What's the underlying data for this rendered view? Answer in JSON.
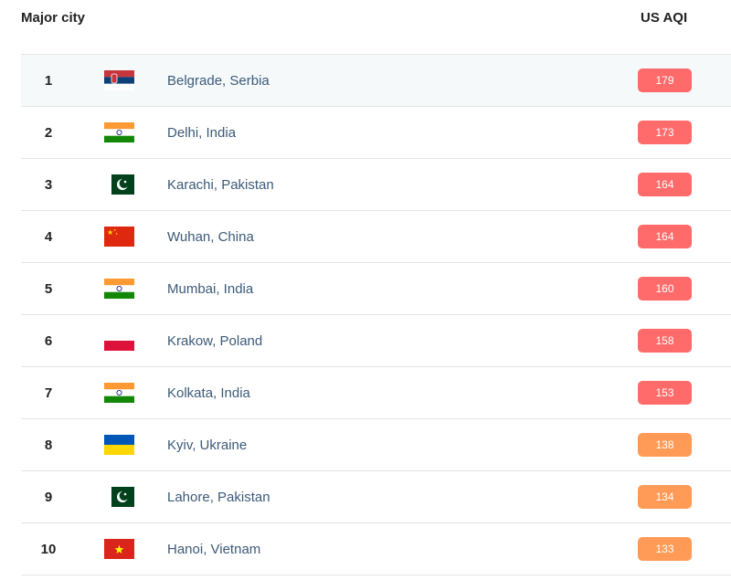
{
  "header": {
    "city": "Major city",
    "aqi": "US AQI"
  },
  "colors": {
    "unhealthy": "#ff6b6b",
    "sensitive": "#ff9b57"
  },
  "rows": [
    {
      "rank": "1",
      "flag": "serbia",
      "city": "Belgrade, Serbia",
      "aqi": "179",
      "level": "unhealthy"
    },
    {
      "rank": "2",
      "flag": "india",
      "city": "Delhi, India",
      "aqi": "173",
      "level": "unhealthy"
    },
    {
      "rank": "3",
      "flag": "pakistan",
      "city": "Karachi, Pakistan",
      "aqi": "164",
      "level": "unhealthy"
    },
    {
      "rank": "4",
      "flag": "china",
      "city": "Wuhan, China",
      "aqi": "164",
      "level": "unhealthy"
    },
    {
      "rank": "5",
      "flag": "india",
      "city": "Mumbai, India",
      "aqi": "160",
      "level": "unhealthy"
    },
    {
      "rank": "6",
      "flag": "poland",
      "city": "Krakow, Poland",
      "aqi": "158",
      "level": "unhealthy"
    },
    {
      "rank": "7",
      "flag": "india",
      "city": "Kolkata, India",
      "aqi": "153",
      "level": "unhealthy"
    },
    {
      "rank": "8",
      "flag": "ukraine",
      "city": "Kyiv, Ukraine",
      "aqi": "138",
      "level": "sensitive"
    },
    {
      "rank": "9",
      "flag": "pakistan",
      "city": "Lahore, Pakistan",
      "aqi": "134",
      "level": "sensitive"
    },
    {
      "rank": "10",
      "flag": "vietnam",
      "city": "Hanoi, Vietnam",
      "aqi": "133",
      "level": "sensitive"
    }
  ]
}
